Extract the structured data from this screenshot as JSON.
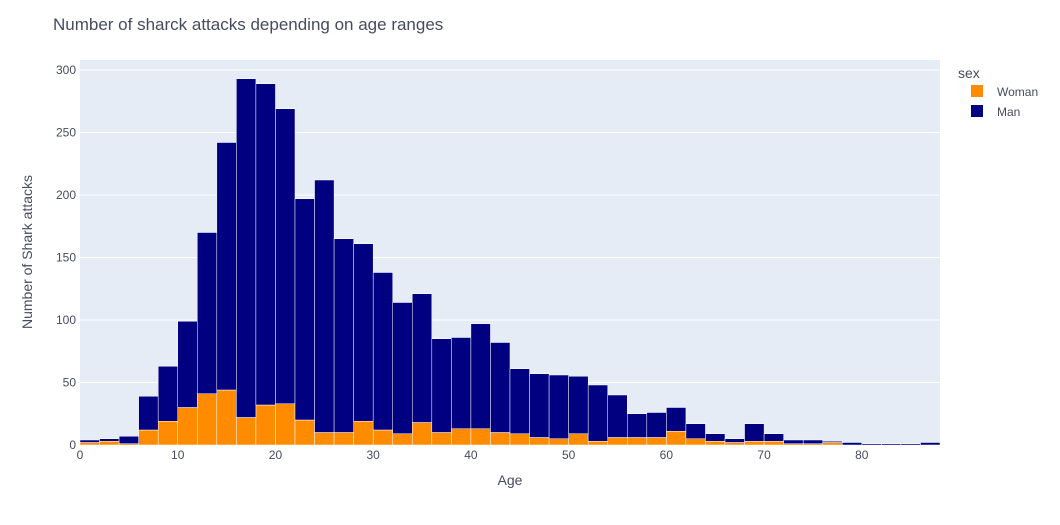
{
  "chart_data": {
    "type": "bar",
    "barmode": "stack",
    "title": "Number of sharck attacks depending on age ranges",
    "xlabel": "Age",
    "ylabel": "Number of Shark attacks",
    "xlim": [
      0,
      88
    ],
    "ylim": [
      0,
      308
    ],
    "bin_width": 2,
    "x_ticks": [
      0,
      10,
      20,
      30,
      40,
      50,
      60,
      70,
      80
    ],
    "y_ticks": [
      0,
      50,
      100,
      150,
      200,
      250,
      300
    ],
    "grid": true,
    "legend": {
      "title": "sex",
      "position": "top-right"
    },
    "bin_starts": [
      0,
      2,
      4,
      6,
      8,
      10,
      12,
      14,
      16,
      18,
      20,
      22,
      24,
      26,
      28,
      30,
      32,
      34,
      36,
      38,
      40,
      42,
      44,
      46,
      48,
      50,
      52,
      54,
      56,
      58,
      60,
      62,
      64,
      66,
      68,
      70,
      72,
      74,
      76,
      78,
      80,
      82,
      84,
      86
    ],
    "series": [
      {
        "name": "Woman",
        "color": "#ff8c00",
        "values": [
          2,
          3,
          1,
          12,
          19,
          30,
          41,
          44,
          22,
          32,
          33,
          20,
          10,
          10,
          19,
          12,
          9,
          18,
          10,
          13,
          13,
          10,
          9,
          6,
          5,
          9,
          3,
          6,
          6,
          6,
          11,
          5,
          3,
          2,
          3,
          3,
          1,
          1,
          2,
          0,
          0,
          0,
          0,
          0
        ]
      },
      {
        "name": "Man",
        "color": "#000080",
        "values": [
          2,
          2,
          6,
          27,
          44,
          69,
          129,
          198,
          271,
          257,
          236,
          177,
          202,
          155,
          142,
          126,
          105,
          103,
          75,
          73,
          84,
          72,
          52,
          51,
          51,
          46,
          45,
          34,
          19,
          20,
          19,
          12,
          6,
          3,
          14,
          6,
          3,
          3,
          1,
          2,
          1,
          1,
          1,
          2
        ]
      }
    ]
  }
}
